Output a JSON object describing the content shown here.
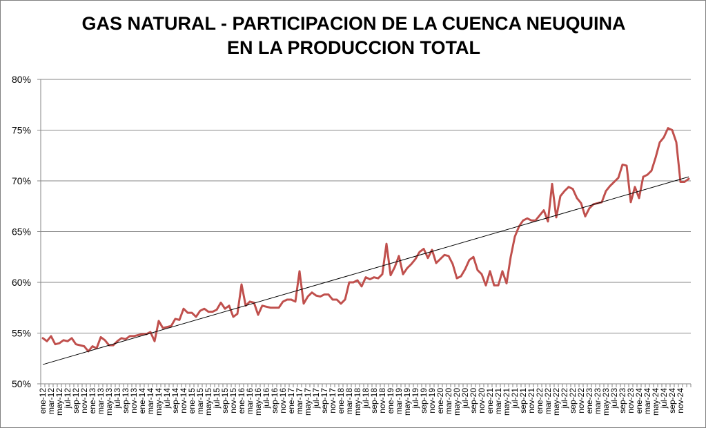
{
  "chart_data": {
    "type": "line",
    "title": [
      "GAS NATURAL - PARTICIPACION DE LA CUENCA NEUQUINA",
      "EN LA PRODUCCION TOTAL"
    ],
    "xlabel": "",
    "ylabel": "",
    "ylim": [
      50,
      80
    ],
    "yticks": [
      "50%",
      "55%",
      "60%",
      "65%",
      "70%",
      "75%",
      "80%"
    ],
    "grid": "horizontal",
    "legend": "none",
    "x_tick_labels": [
      "ene-12",
      "mar-12",
      "may-12",
      "jul-12",
      "sep-12",
      "nov-12",
      "ene-13",
      "mar-13",
      "may-13",
      "jul-13",
      "sep-13",
      "nov-13",
      "ene-14",
      "mar-14",
      "may-14",
      "jul-14",
      "sep-14",
      "nov-14",
      "ene-15",
      "mar-15",
      "may-15",
      "jul-15",
      "sep-15",
      "nov-15",
      "ene-16",
      "mar-16",
      "may-16",
      "jul-16",
      "sep-16",
      "nov-16",
      "ene-17",
      "mar-17",
      "may-17",
      "jul-17",
      "sep-17",
      "nov-17",
      "ene-18",
      "mar-18",
      "may-18",
      "jul-18",
      "sep-18",
      "nov-18",
      "ene-19",
      "mar-19",
      "may-19",
      "jul-19",
      "sep-19",
      "nov-19",
      "ene-20",
      "mar-20",
      "may-20",
      "jul-20",
      "sep-20",
      "nov-20",
      "ene-21",
      "mar-21",
      "may-21",
      "jul-21",
      "sep-21",
      "nov-21",
      "ene-22",
      "mar-22",
      "may-22",
      "jul-22",
      "sep-22",
      "nov-22",
      "ene-23",
      "mar-23",
      "may-23",
      "jul-23",
      "sep-23",
      "nov-23",
      "ene-24",
      "mar-24",
      "may-24",
      "jul-24",
      "sep-24",
      "nov-24"
    ],
    "series": [
      {
        "color": "#c0504d",
        "values": [
          54.5,
          54.2,
          54.7,
          53.9,
          54.0,
          54.3,
          54.2,
          54.5,
          53.9,
          53.8,
          53.7,
          53.2,
          53.7,
          53.5,
          54.6,
          54.3,
          53.8,
          53.8,
          54.2,
          54.5,
          54.4,
          54.7,
          54.7,
          54.8,
          54.9,
          54.9,
          55.1,
          54.2,
          56.2,
          55.5,
          55.6,
          55.7,
          56.4,
          56.3,
          57.4,
          57.0,
          57.0,
          56.6,
          57.2,
          57.4,
          57.1,
          57.1,
          57.3,
          58.0,
          57.4,
          57.7,
          56.6,
          56.9,
          59.8,
          57.7,
          58.1,
          58.0,
          56.8,
          57.7,
          57.6,
          57.5,
          57.5,
          57.5,
          58.1,
          58.3,
          58.3,
          58.1,
          61.1,
          57.9,
          58.6,
          59.0,
          58.7,
          58.6,
          58.8,
          58.8,
          58.3,
          58.3,
          57.9,
          58.3,
          60.0,
          60.0,
          60.2,
          59.6,
          60.5,
          60.3,
          60.5,
          60.4,
          60.8,
          63.8,
          60.7,
          61.5,
          62.6,
          60.8,
          61.4,
          61.8,
          62.3,
          63.0,
          63.3,
          62.4,
          63.2,
          61.9,
          62.3,
          62.7,
          62.6,
          61.8,
          60.4,
          60.6,
          61.3,
          62.2,
          62.5,
          61.2,
          60.8,
          59.7,
          61.1,
          59.7,
          59.7,
          61.1,
          59.9,
          62.5,
          64.5,
          65.5,
          66.1,
          66.3,
          66.1,
          66.1,
          66.6,
          67.1,
          66.0,
          69.7,
          66.4,
          68.5,
          69.0,
          69.4,
          69.2,
          68.3,
          67.8,
          66.5,
          67.3,
          67.7,
          67.8,
          67.9,
          69.0,
          69.5,
          69.9,
          70.3,
          71.6,
          71.5,
          67.9,
          69.4,
          68.3,
          70.4,
          70.6,
          71.0,
          72.3,
          73.8,
          74.3,
          75.2,
          75.0,
          73.8,
          69.9,
          69.9,
          70.2
        ]
      },
      {
        "name": "",
        "type": "linear-trend",
        "color": "#000000",
        "values": [
          51.9,
          70.4
        ]
      }
    ]
  }
}
